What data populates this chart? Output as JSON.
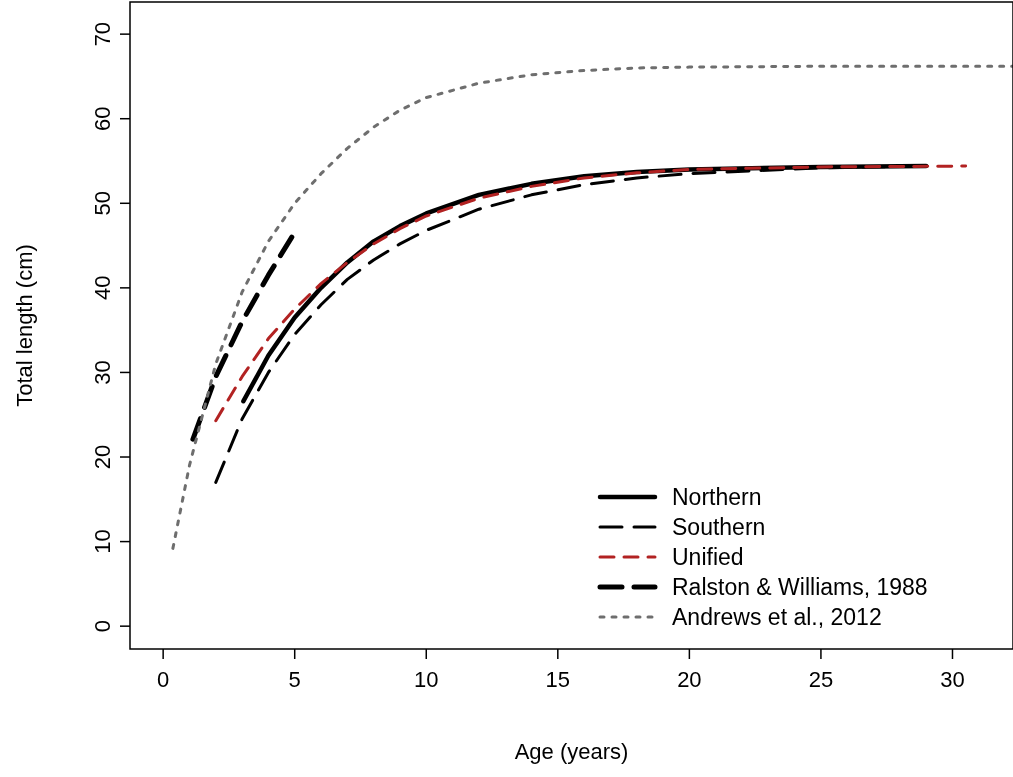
{
  "chart_data": {
    "type": "line",
    "xlabel": "Age (years)",
    "ylabel": "Total length (cm)",
    "xlim": [
      -1.26,
      32.3
    ],
    "ylim": [
      -2.7,
      73.8
    ],
    "xticks": [
      0,
      5,
      10,
      15,
      20,
      25,
      30
    ],
    "yticks": [
      0,
      10,
      20,
      30,
      40,
      50,
      60,
      70
    ],
    "grid": false,
    "legend": "bottom right",
    "series": [
      {
        "name": "Northern",
        "color": "#000000",
        "line_style": "solid",
        "x": [
          3.05,
          4,
          5,
          6,
          7,
          8,
          9,
          10,
          12,
          14,
          16,
          18,
          20,
          25,
          29
        ],
        "values": [
          26.6,
          32,
          36.5,
          40,
          43,
          45.5,
          47.3,
          48.8,
          51,
          52.3,
          53.2,
          53.7,
          54,
          54.3,
          54.4
        ]
      },
      {
        "name": "Southern",
        "color": "#000000",
        "line_style": "dashed",
        "x": [
          2,
          3,
          4,
          5,
          6,
          7,
          8,
          9,
          10,
          12,
          14,
          16,
          18,
          20,
          25,
          29
        ],
        "values": [
          17,
          24.5,
          30,
          34.5,
          38,
          41,
          43.3,
          45.2,
          46.8,
          49.3,
          51,
          52.2,
          53,
          53.5,
          54.2,
          54.4
        ]
      },
      {
        "name": "Unified",
        "color": "#b22222",
        "line_style": "dashed",
        "x": [
          2,
          3,
          4,
          5,
          6,
          7,
          8,
          9,
          10,
          12,
          14,
          16,
          18,
          20,
          25,
          30.5
        ],
        "values": [
          24.3,
          29.5,
          34,
          37.5,
          40.5,
          43,
          45.2,
          47,
          48.5,
          50.6,
          52,
          53,
          53.6,
          54,
          54.3,
          54.4
        ]
      },
      {
        "name": "Ralston & Williams, 1988",
        "color": "#000000",
        "line_style": "dashed",
        "x": [
          1.13,
          2,
          3,
          4,
          4.89
        ],
        "values": [
          22.1,
          29.5,
          36,
          41.5,
          46
        ]
      },
      {
        "name": "Andrews et al., 2012",
        "color": "#6e6e6e",
        "line_style": "dotted",
        "x": [
          0.37,
          1,
          2,
          3,
          4,
          5,
          6,
          7,
          8,
          9,
          10,
          12,
          14,
          16,
          18,
          20,
          25,
          32.3
        ],
        "values": [
          9.2,
          19,
          31,
          39.5,
          45.5,
          50,
          53.5,
          56.5,
          59,
          61,
          62.5,
          64.2,
          65.2,
          65.7,
          66,
          66.1,
          66.2,
          66.2
        ]
      }
    ]
  }
}
